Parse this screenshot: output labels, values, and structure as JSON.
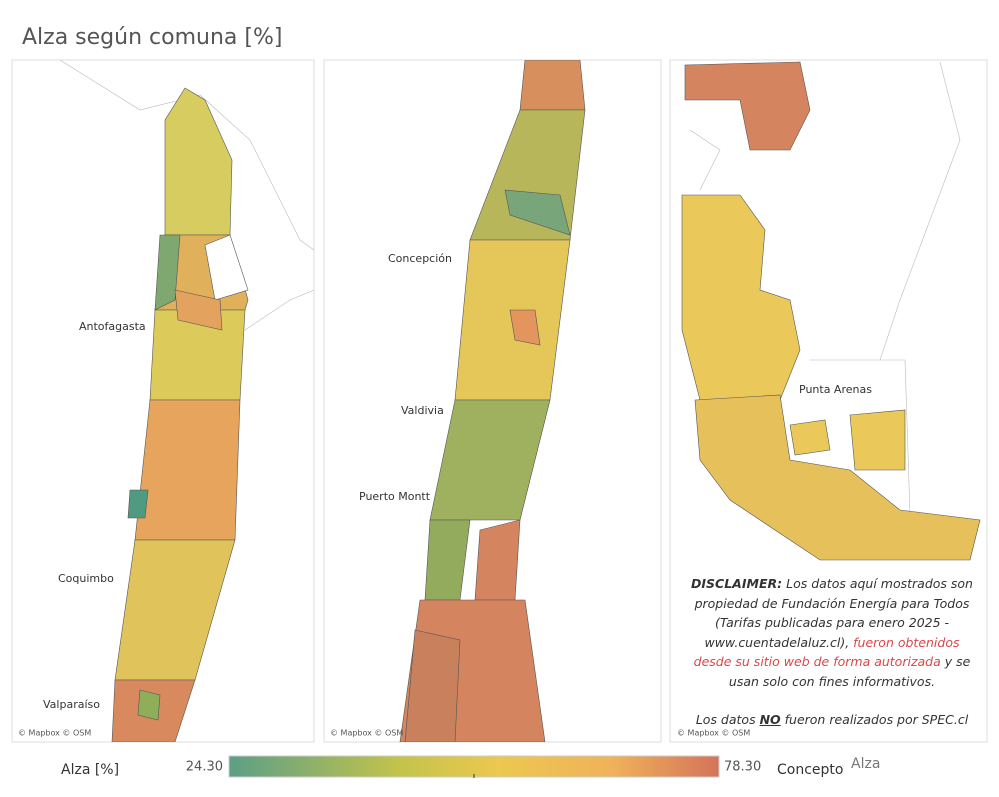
{
  "title": "Alza según comuna [%]",
  "maps": [
    {
      "cities": [
        "Antofagasta",
        "Coquimbo",
        "Valparaíso"
      ],
      "attribution": "© Mapbox © OSM"
    },
    {
      "cities": [
        "Concepción",
        "Valdivia",
        "Puerto Montt"
      ],
      "attribution": "© Mapbox © OSM"
    },
    {
      "cities": [
        "Punta Arenas"
      ],
      "attribution": "© Mapbox © OSM"
    }
  ],
  "disclaimer": {
    "heading": "DISCLAIMER:",
    "text": " Los datos aquí mostrados son propiedad de Fundación Energía para Todos (Tarifas publicadas para enero 2025 - www.cuentadelaluz.cl), ",
    "highlight": "fueron obtenidos desde su sitio web de forma autorizada",
    "ending": "  y se usan solo con fines informativos.",
    "note_start": "Los datos ",
    "note_emphasis": "NO",
    "note_end": "  fueron realizados por SPEC.cl"
  },
  "legend": {
    "label": "Alza [%]",
    "min": "24.30",
    "max": "78.30",
    "concept_label": "Concepto",
    "concept_value": "Alza"
  }
}
